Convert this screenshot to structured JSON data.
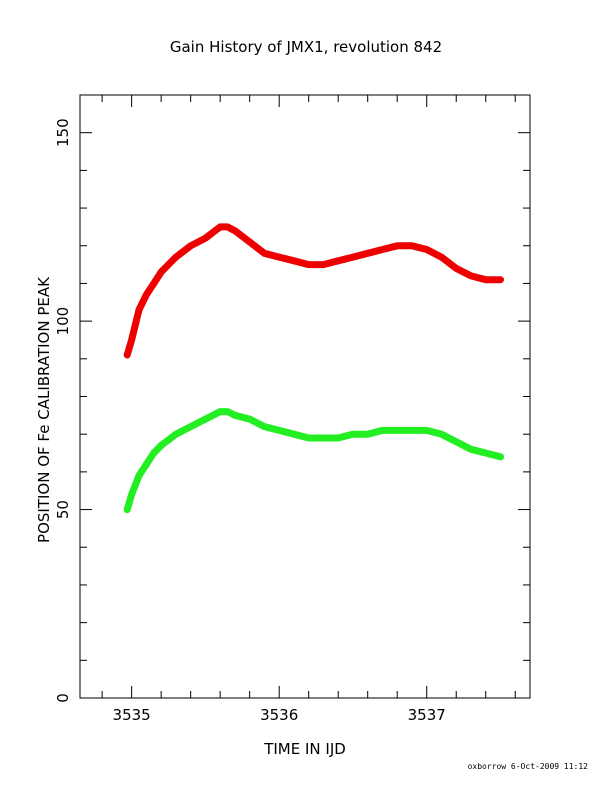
{
  "chart_data": {
    "type": "scatter",
    "title": "Gain History of JMX1, revolution 842",
    "xlabel": "TIME IN IJD",
    "ylabel": "POSITION OF Fe CALIBRATION PEAK",
    "xlim": [
      3534.65,
      3537.7
    ],
    "ylim": [
      0,
      160
    ],
    "xticks": [
      3535,
      3536,
      3537
    ],
    "xtick_labels": [
      "3535",
      "3536",
      "3537"
    ],
    "yticks": [
      0,
      50,
      100,
      150
    ],
    "ytick_labels": [
      "0",
      "50",
      "100",
      "150"
    ],
    "grid": false,
    "series": [
      {
        "marker": "plus",
        "color": "#000000",
        "x": [
          3534.97,
          3535.0,
          3535.05,
          3535.1,
          3535.15,
          3535.2,
          3535.3,
          3535.4,
          3535.5,
          3535.6,
          3535.65,
          3535.7,
          3535.8,
          3535.9,
          3536.0,
          3536.1,
          3536.2,
          3536.3,
          3536.4,
          3536.5,
          3536.6,
          3536.7,
          3536.8,
          3536.9,
          3537.0,
          3537.1,
          3537.2,
          3537.3,
          3537.4,
          3537.5
        ],
        "y": [
          91,
          95,
          103,
          107,
          110,
          113,
          117,
          120,
          122,
          125,
          125,
          124,
          121,
          118,
          117,
          116,
          115,
          115,
          116,
          117,
          118,
          119,
          120,
          120,
          119,
          117,
          114,
          112,
          111,
          111
        ]
      },
      {
        "marker": "x",
        "color": "#0000cc",
        "x": [
          3534.97,
          3535.0,
          3535.05,
          3535.1,
          3535.15,
          3535.2,
          3535.3,
          3535.4,
          3535.5,
          3535.6,
          3535.65,
          3535.7,
          3535.8,
          3535.9,
          3536.0,
          3536.1,
          3536.2,
          3536.3,
          3536.4,
          3536.5,
          3536.6,
          3536.7,
          3536.8,
          3536.9,
          3537.0,
          3537.1,
          3537.2,
          3537.3,
          3537.4,
          3537.5
        ],
        "y": [
          50,
          54,
          59,
          62,
          65,
          67,
          70,
          72,
          74,
          76,
          76,
          75,
          74,
          72,
          71,
          70,
          69,
          69,
          69,
          70,
          70,
          71,
          71,
          71,
          71,
          70,
          68,
          66,
          65,
          64
        ]
      },
      {
        "style": "fit",
        "color": "#ee0000",
        "x": [
          3534.97,
          3535.0,
          3535.05,
          3535.1,
          3535.15,
          3535.2,
          3535.3,
          3535.4,
          3535.5,
          3535.6,
          3535.65,
          3535.7,
          3535.8,
          3535.9,
          3536.0,
          3536.1,
          3536.2,
          3536.3,
          3536.4,
          3536.5,
          3536.6,
          3536.7,
          3536.8,
          3536.9,
          3537.0,
          3537.1,
          3537.2,
          3537.3,
          3537.4,
          3537.5
        ],
        "y": [
          91,
          95,
          103,
          107,
          110,
          113,
          117,
          120,
          122,
          125,
          125,
          124,
          121,
          118,
          117,
          116,
          115,
          115,
          116,
          117,
          118,
          119,
          120,
          120,
          119,
          117,
          114,
          112,
          111,
          111
        ]
      },
      {
        "style": "fit",
        "color": "#22ee22",
        "x": [
          3534.97,
          3535.0,
          3535.05,
          3535.1,
          3535.15,
          3535.2,
          3535.3,
          3535.4,
          3535.5,
          3535.6,
          3535.65,
          3535.7,
          3535.8,
          3535.9,
          3536.0,
          3536.1,
          3536.2,
          3536.3,
          3536.4,
          3536.5,
          3536.6,
          3536.7,
          3536.8,
          3536.9,
          3537.0,
          3537.1,
          3537.2,
          3537.3,
          3537.4,
          3537.5
        ],
        "y": [
          50,
          54,
          59,
          62,
          65,
          67,
          70,
          72,
          74,
          76,
          76,
          75,
          74,
          72,
          71,
          70,
          69,
          69,
          69,
          70,
          70,
          71,
          71,
          71,
          71,
          70,
          68,
          66,
          65,
          64
        ]
      }
    ]
  },
  "footer": "oxborrow  6-Oct-2009 11:12"
}
